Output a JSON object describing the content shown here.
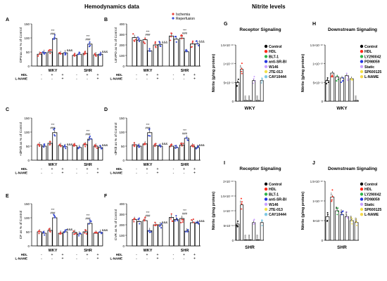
{
  "headers": {
    "left": "Hemodynamics data",
    "right": "Nitrite levels"
  },
  "hemo": {
    "groups": [
      "WKY",
      "SHR"
    ],
    "row_hdl": "HDL",
    "row_lname": "L-NAME",
    "signs_hdl": [
      "-",
      "+",
      "+",
      "-",
      "+",
      "+"
    ],
    "signs_lname": [
      "-",
      "-",
      "+",
      "-",
      "-",
      "+"
    ],
    "legend": [
      "Ischemia",
      "Reperfusion"
    ],
    "legend_colors": [
      "#e8413b",
      "#3d50d6"
    ],
    "ylim": [
      0,
      150
    ],
    "yticks": [
      0,
      50,
      100,
      150
    ]
  },
  "nitrite_ylabel": "Nitrite (g/mg protein)",
  "colors": {
    "Control": "#000000",
    "HDL": "#ff2a1a",
    "BLT-1": "#2fb34a",
    "anti-SR-BI": "#2437e0",
    "W146": "#c9a0ff",
    "JTE-013": "#f2e14a",
    "CAY10444": "#7ec8e3",
    "LY290042": "#2fb34a",
    "PD98059": "#2437e0",
    "Static": "#c9a0ff",
    "SP600125": "#f2e14a",
    "L-NAME": "#f5d84d"
  },
  "chart_data": [
    {
      "panel": "A",
      "type": "bar",
      "ylabel": "DPmax as % of Control",
      "categories": [
        "WKY HDL- L-NAME-",
        "WKY HDL+ L-NAME-",
        "WKY HDL+ L-NAME+",
        "SHR HDL- L-NAME-",
        "SHR HDL+ L-NAME-",
        "SHR HDL+ L-NAME+"
      ],
      "series": [
        {
          "name": "Ischemia",
          "values": [
            42,
            50,
            44,
            38,
            45,
            40
          ]
        },
        {
          "name": "Reperfusion",
          "values": [
            48,
            98,
            47,
            42,
            78,
            42
          ]
        }
      ],
      "annotations": [
        "***",
        "###",
        "&&&",
        "***",
        "###",
        "&&&"
      ],
      "ylim": [
        0,
        150
      ]
    },
    {
      "panel": "B",
      "type": "bar",
      "ylabel": "LEVPD as % of Control",
      "categories": [
        "WKY HDL- L-NAME-",
        "WKY HDL+ L-NAME-",
        "WKY HDL+ L-NAME+",
        "SHR HDL- L-NAME-",
        "SHR HDL+ L-NAME-",
        "SHR HDL+ L-NAME+"
      ],
      "series": [
        {
          "name": "Ischemia",
          "values": [
            270,
            250,
            200,
            285,
            265,
            210
          ]
        },
        {
          "name": "Reperfusion",
          "values": [
            245,
            145,
            205,
            255,
            135,
            210
          ]
        }
      ],
      "annotations": [
        "***",
        "###",
        "&&&",
        "***",
        "###",
        "&&&"
      ],
      "ylim": [
        0,
        400
      ]
    },
    {
      "panel": "C",
      "type": "bar",
      "ylabel": "+dP/dt as % of Control",
      "categories": [
        "WKY HDL- L-NAME-",
        "WKY HDL+ L-NAME-",
        "WKY HDL+ L-NAME+",
        "SHR HDL- L-NAME-",
        "SHR HDL+ L-NAME-",
        "SHR HDL+ L-NAME+"
      ],
      "series": [
        {
          "name": "Ischemia",
          "values": [
            55,
            60,
            52,
            52,
            55,
            50
          ]
        },
        {
          "name": "Reperfusion",
          "values": [
            50,
            98,
            48,
            45,
            75,
            45
          ]
        }
      ],
      "annotations": [
        "***",
        "###",
        "&&&",
        "***",
        "###",
        "&&&"
      ],
      "ylim": [
        0,
        150
      ]
    },
    {
      "panel": "D",
      "type": "bar",
      "ylabel": "-dP/dt as % of Control",
      "categories": [
        "WKY HDL- L-NAME-",
        "WKY HDL+ L-NAME-",
        "WKY HDL+ L-NAME+",
        "SHR HDL- L-NAME-",
        "SHR HDL+ L-NAME-",
        "SHR HDL+ L-NAME+"
      ],
      "series": [
        {
          "name": "Ischemia",
          "values": [
            55,
            58,
            52,
            50,
            54,
            50
          ]
        },
        {
          "name": "Reperfusion",
          "values": [
            50,
            98,
            50,
            45,
            78,
            45
          ]
        }
      ],
      "annotations": [
        "***",
        "###",
        "&&&",
        "***",
        "###",
        "&&&"
      ],
      "ylim": [
        0,
        150
      ]
    },
    {
      "panel": "E",
      "type": "bar",
      "ylabel": "CF as % of Control",
      "categories": [
        "WKY HDL- L-NAME-",
        "WKY HDL+ L-NAME-",
        "WKY HDL+ L-NAME+",
        "SHR HDL- L-NAME-",
        "SHR HDL+ L-NAME-",
        "SHR HDL+ L-NAME+"
      ],
      "series": [
        {
          "name": "Ischemia",
          "values": [
            50,
            55,
            45,
            48,
            50,
            45
          ]
        },
        {
          "name": "Reperfusion",
          "values": [
            45,
            100,
            50,
            42,
            80,
            48
          ]
        }
      ],
      "annotations": [
        "***",
        "###",
        "&&&",
        "***",
        "###",
        "&&&"
      ],
      "ylim": [
        0,
        150
      ]
    },
    {
      "panel": "F",
      "type": "bar",
      "ylabel": "CVR as % of Control",
      "categories": [
        "WKY HDL- L-NAME-",
        "WKY HDL+ L-NAME-",
        "WKY HDL+ L-NAME+",
        "SHR HDL- L-NAME-",
        "SHR HDL+ L-NAME-",
        "SHR HDL+ L-NAME+"
      ],
      "series": [
        {
          "name": "Ischemia",
          "values": [
            250,
            240,
            200,
            270,
            260,
            220
          ]
        },
        {
          "name": "Reperfusion",
          "values": [
            230,
            145,
            200,
            250,
            140,
            215
          ]
        }
      ],
      "annotations": [
        "***",
        "###",
        "&&&",
        "***",
        "###",
        "&&&"
      ],
      "ylim": [
        0,
        400
      ]
    },
    {
      "panel": "G",
      "type": "bar",
      "title": "Receptor Signaling",
      "xlabel": "WKY",
      "categories": [
        "Control",
        "HDL",
        "BLT-1",
        "anti-SR-BI",
        "W146",
        "JTE-013",
        "CAY10444"
      ],
      "values": [
        0.5,
        0.85,
        0.02,
        0.02,
        0.55,
        0.02,
        0.55
      ],
      "annotations": [
        "",
        "***",
        "ooo",
        "ooo",
        "",
        "ooo",
        ""
      ],
      "ytick_labels": [
        "0",
        "5×10⁻¹¹",
        "1×10⁻¹⁰",
        "1.5×10⁻¹⁰"
      ]
    },
    {
      "panel": "H",
      "type": "bar",
      "title": "Downstream Signaling",
      "xlabel": "WKY",
      "categories": [
        "Control",
        "HDL",
        "LY290042",
        "PD98059",
        "Static",
        "SP600125",
        "L-NAME"
      ],
      "values": [
        0.55,
        0.75,
        0.65,
        0.62,
        0.68,
        0.6,
        0.02
      ],
      "annotations": [
        "",
        "",
        "",
        "",
        "",
        "",
        "ooo"
      ],
      "ytick_labels": [
        "0",
        "5×10⁻¹¹",
        "1×10⁻¹⁰",
        "1.5×10⁻¹⁰"
      ]
    },
    {
      "panel": "I",
      "type": "bar",
      "title": "Receptor Signaling",
      "xlabel": "SHR",
      "categories": [
        "Control",
        "HDL",
        "BLT-1",
        "anti-SR-BI",
        "W146",
        "JTE-013",
        "CAY10444"
      ],
      "values": [
        0.55,
        1.2,
        0.02,
        0.02,
        0.6,
        0.02,
        0.6
      ],
      "annotations": [
        "",
        "***",
        "ooo",
        "ooo",
        "",
        "ooo",
        ""
      ],
      "ytick_labels": [
        "0",
        "5×10⁻¹¹",
        "1×10⁻¹⁰",
        "1.5×10⁻¹⁰",
        "2×10⁻¹⁰"
      ]
    },
    {
      "panel": "J",
      "type": "bar",
      "title": "Downstream Signaling",
      "xlabel": "SHR",
      "categories": [
        "Control",
        "HDL",
        "LY290042",
        "PD98059",
        "Static",
        "SP600125",
        "L-NAME"
      ],
      "values": [
        0.6,
        1.1,
        0.75,
        0.65,
        0.6,
        0.5,
        0.45
      ],
      "annotations": [
        "",
        "***",
        "oo",
        "ooo",
        "ooo",
        "ooo",
        "ooo"
      ],
      "ytick_labels": [
        "0",
        "5×10⁻¹¹",
        "1×10⁻¹⁰",
        "1.5×10⁻¹⁰"
      ]
    }
  ]
}
